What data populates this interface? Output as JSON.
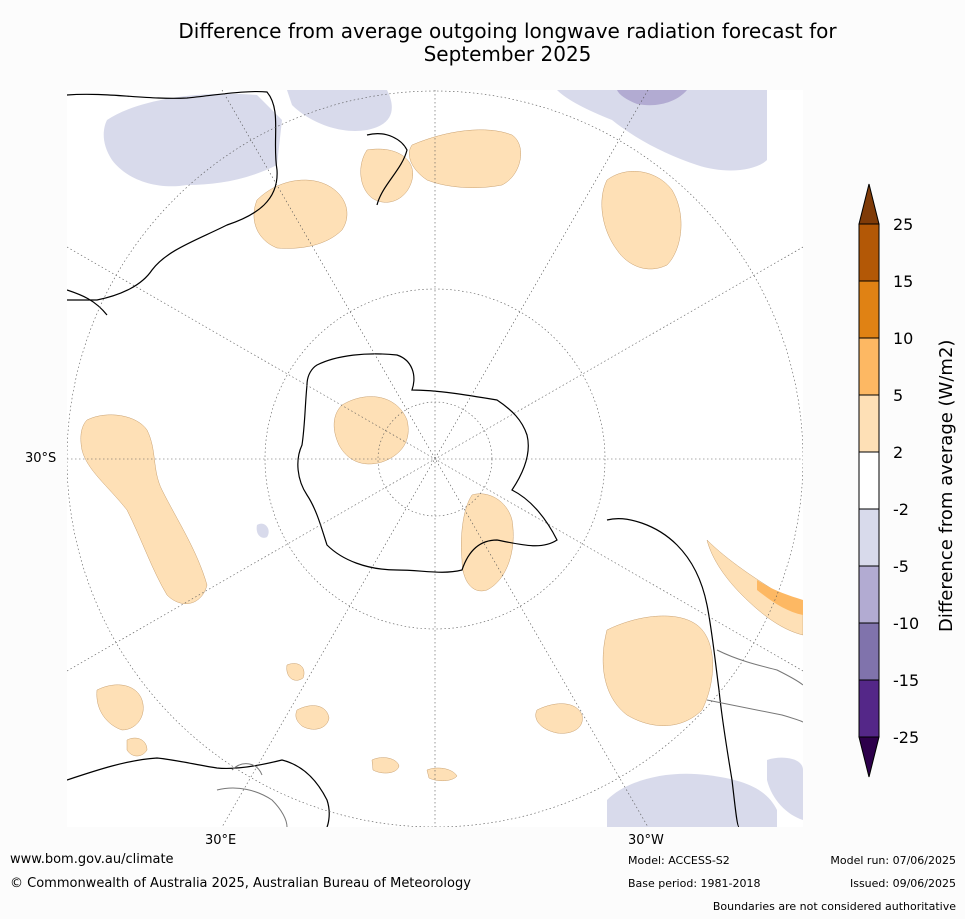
{
  "title_line1": "Difference from average outgoing longwave radiation forecast for",
  "title_line2": "September 2025",
  "labels": {
    "lat_30s": "30°S",
    "lon_30e": "30°E",
    "lon_30w": "30°W"
  },
  "colorbar": {
    "title": "Difference from average (W/m2)",
    "ticks": [
      "25",
      "15",
      "10",
      "5",
      "2",
      "-2",
      "-5",
      "-10",
      "-15",
      "-25"
    ],
    "colors": {
      "above_25": "#7f3b08",
      "15_25": "#b35806",
      "10_15": "#e08214",
      "5_10": "#fdb863",
      "2_5": "#fee0b6",
      "neutral": "#ffffff",
      "m5_m2": "#d8daeb",
      "m10_m5": "#b2abd2",
      "m15_m10": "#8073ac",
      "m25_m15": "#542788",
      "below_m25": "#2d004b"
    }
  },
  "footer": {
    "website": "www.bom.gov.au/climate",
    "copyright": "© Commonwealth of Australia 2025, Australian Bureau of Meteorology",
    "model": "Model: ACCESS-S2",
    "base_period": "Base period: 1981-2018",
    "model_run": "Model run: 07/06/2025",
    "issued": "Issued: 09/06/2025",
    "disclaimer": "Boundaries are not considered authoritative"
  }
}
